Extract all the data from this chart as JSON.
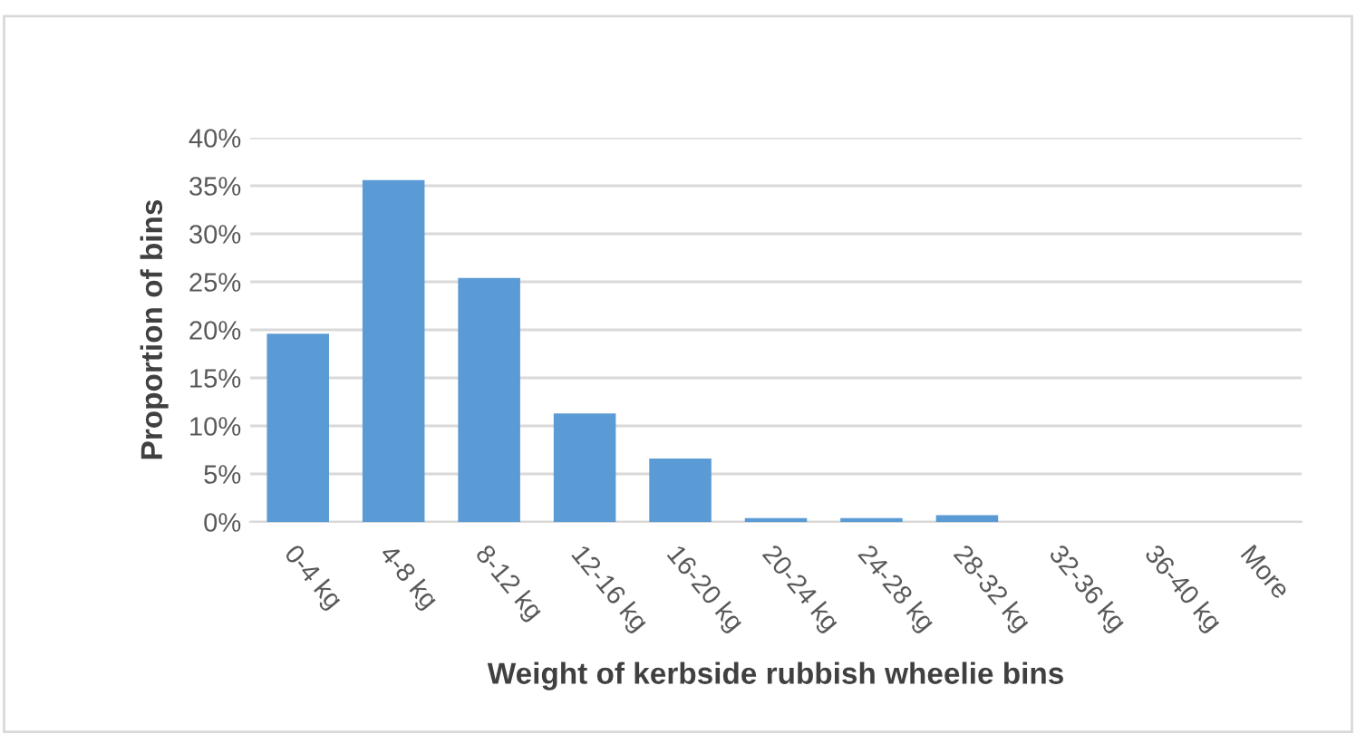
{
  "chart_data": {
    "type": "bar",
    "xlabel": "Weight of kerbside rubbish wheelie bins",
    "ylabel": "Proportion of bins",
    "categories": [
      "0-4 kg",
      "4-8 kg",
      "8-12 kg",
      "12-16 kg",
      "16-20 kg",
      "20-24 kg",
      "24-28 kg",
      "28-32 kg",
      "32-36 kg",
      "36-40 kg",
      "More"
    ],
    "values": [
      19.6,
      35.6,
      25.4,
      11.3,
      6.6,
      0.4,
      0.4,
      0.7,
      0,
      0,
      0
    ],
    "color": "#5b9bd5",
    "ylim": [
      0,
      40
    ],
    "yticks": [
      {
        "value": 0,
        "label": "0%"
      },
      {
        "value": 5,
        "label": "5%"
      },
      {
        "value": 10,
        "label": "10%"
      },
      {
        "value": 15,
        "label": "15%"
      },
      {
        "value": 20,
        "label": "20%"
      },
      {
        "value": 25,
        "label": "25%"
      },
      {
        "value": 30,
        "label": "30%"
      },
      {
        "value": 35,
        "label": "35%"
      },
      {
        "value": 40,
        "label": "40%"
      }
    ],
    "grid": "y"
  }
}
